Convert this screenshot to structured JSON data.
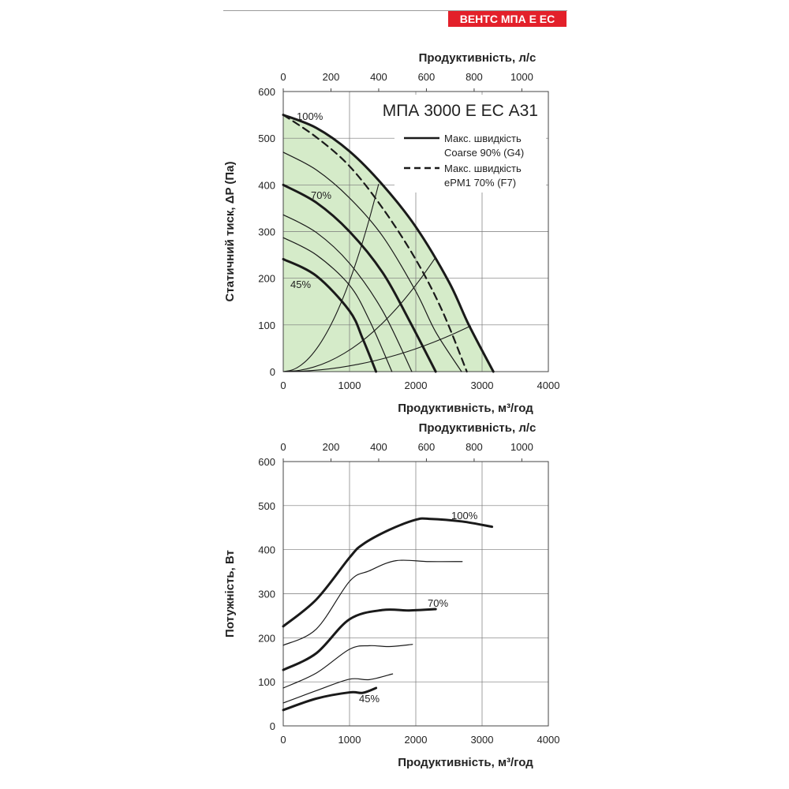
{
  "header": {
    "badge": "ВЕНТС МПА Е ЕС"
  },
  "colors": {
    "accent": "#e3202a",
    "fill": "#d5ebc9",
    "line": "#1a1a1a",
    "grid": "#777777"
  },
  "chart_data": [
    {
      "type": "line",
      "title": "МПА 3000 Е ЕС А31",
      "xlabel": "Продуктивність, м³/год",
      "x2label": "Продуктивність, л/с",
      "ylabel": "Статичний тиск, ΔP (Па)",
      "xlim": [
        0,
        4000
      ],
      "x2lim": [
        0,
        1111
      ],
      "ylim": [
        0,
        600
      ],
      "xticks": [
        0,
        1000,
        2000,
        3000,
        4000
      ],
      "x2ticks": [
        0,
        200,
        400,
        600,
        800,
        1000
      ],
      "yticks": [
        0,
        100,
        200,
        300,
        400,
        500,
        600
      ],
      "grid": true,
      "legend": {
        "placement": "top-right",
        "entries": [
          {
            "label": "Макс. швидкість",
            "sub": "Coarse 90% (G4)",
            "style": "solid"
          },
          {
            "label": "Макс. швидкість",
            "sub": "ePM1 70% (F7)",
            "style": "dashed"
          }
        ]
      },
      "series": [
        {
          "name": "100%",
          "style": "bold",
          "points": [
            [
              0,
              550
            ],
            [
              500,
              522
            ],
            [
              1000,
              472
            ],
            [
              1500,
              400
            ],
            [
              2000,
              310
            ],
            [
              2500,
              192
            ],
            [
              2800,
              100
            ],
            [
              3170,
              0
            ]
          ]
        },
        {
          "style": "dashed",
          "points": [
            [
              0,
              550
            ],
            [
              500,
              502
            ],
            [
              1000,
              440
            ],
            [
              1500,
              350
            ],
            [
              2000,
              240
            ],
            [
              2400,
              130
            ],
            [
              2770,
              0
            ]
          ]
        },
        {
          "style": "thin",
          "points": [
            [
              0,
              470
            ],
            [
              500,
              432
            ],
            [
              1000,
              372
            ],
            [
              1500,
              290
            ],
            [
              2000,
              172
            ],
            [
              2300,
              85
            ],
            [
              2690,
              0
            ]
          ]
        },
        {
          "name": "70%",
          "style": "bold",
          "points": [
            [
              0,
              400
            ],
            [
              500,
              362
            ],
            [
              1000,
              300
            ],
            [
              1500,
              212
            ],
            [
              1900,
              110
            ],
            [
              2300,
              0
            ]
          ]
        },
        {
          "style": "thin",
          "points": [
            [
              0,
              336
            ],
            [
              500,
              298
            ],
            [
              1000,
              232
            ],
            [
              1500,
              130
            ],
            [
              1940,
              0
            ]
          ]
        },
        {
          "style": "thin",
          "points": [
            [
              0,
              287
            ],
            [
              500,
              250
            ],
            [
              1000,
              185
            ],
            [
              1300,
              110
            ],
            [
              1640,
              0
            ]
          ]
        },
        {
          "name": "45%",
          "style": "bold",
          "points": [
            [
              0,
              241
            ],
            [
              500,
              205
            ],
            [
              1000,
              130
            ],
            [
              1200,
              70
            ],
            [
              1400,
              0
            ]
          ]
        }
      ],
      "system_curves": [
        [
          1440,
          402
        ],
        [
          2300,
          245
        ],
        [
          2830,
          98
        ]
      ],
      "annotations": [
        "100%",
        "70%",
        "45%"
      ]
    },
    {
      "type": "line",
      "xlabel": "Продуктивність, м³/год",
      "x2label": "Продуктивність, л/с",
      "ylabel": "Потужність, Вт",
      "xlim": [
        0,
        4000
      ],
      "x2lim": [
        0,
        1111
      ],
      "ylim": [
        0,
        600
      ],
      "xticks": [
        0,
        1000,
        2000,
        3000,
        4000
      ],
      "x2ticks": [
        0,
        200,
        400,
        600,
        800,
        1000
      ],
      "yticks": [
        0,
        100,
        200,
        300,
        400,
        500,
        600
      ],
      "grid": true,
      "series": [
        {
          "name": "100%",
          "style": "bold",
          "points": [
            [
              0,
              226
            ],
            [
              500,
              287
            ],
            [
              1000,
              382
            ],
            [
              1200,
              412
            ],
            [
              1600,
              445
            ],
            [
              2000,
              468
            ],
            [
              2200,
              470
            ],
            [
              2700,
              464
            ],
            [
              3150,
              452
            ]
          ]
        },
        {
          "style": "thin",
          "points": [
            [
              0,
              183
            ],
            [
              500,
              220
            ],
            [
              1000,
              328
            ],
            [
              1300,
              352
            ],
            [
              1700,
              375
            ],
            [
              2200,
              373
            ],
            [
              2700,
              373
            ]
          ]
        },
        {
          "name": "70%",
          "style": "bold",
          "points": [
            [
              0,
              127
            ],
            [
              500,
              165
            ],
            [
              1000,
              242
            ],
            [
              1500,
              263
            ],
            [
              1900,
              262
            ],
            [
              2300,
              265
            ]
          ]
        },
        {
          "style": "thin",
          "points": [
            [
              0,
              86
            ],
            [
              500,
              120
            ],
            [
              1000,
              174
            ],
            [
              1300,
              182
            ],
            [
              1600,
              180
            ],
            [
              1950,
              185
            ]
          ]
        },
        {
          "style": "thin",
          "points": [
            [
              0,
              52
            ],
            [
              500,
              80
            ],
            [
              1000,
              106
            ],
            [
              1300,
              105
            ],
            [
              1650,
              118
            ]
          ]
        },
        {
          "name": "45%",
          "style": "bold",
          "points": [
            [
              0,
              36
            ],
            [
              500,
              62
            ],
            [
              1000,
              76
            ],
            [
              1200,
              75
            ],
            [
              1400,
              86
            ]
          ]
        }
      ],
      "annotations": [
        "100%",
        "70%",
        "45%"
      ]
    }
  ]
}
